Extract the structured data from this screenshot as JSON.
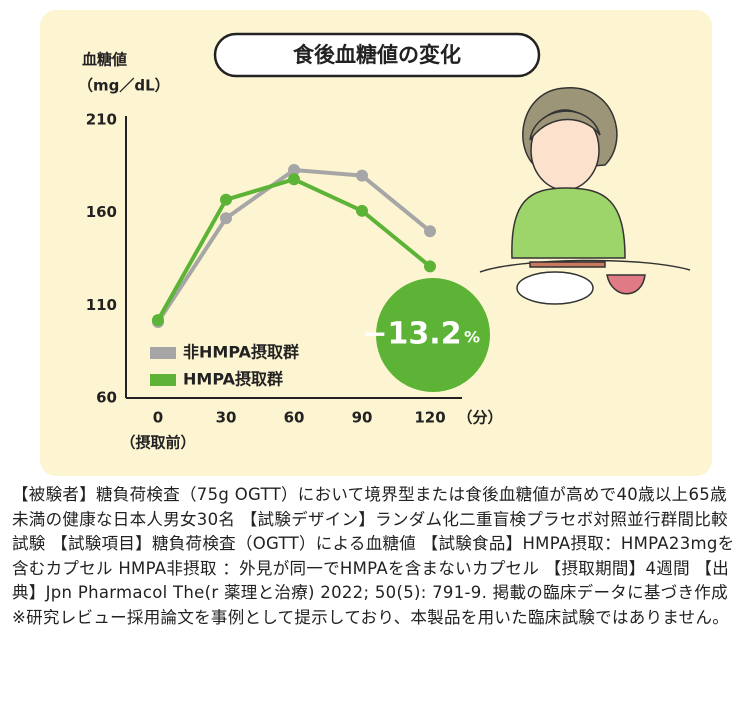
{
  "chart_data": {
    "type": "line",
    "title": "食後血糖値の変化",
    "ylabel_lines": [
      "血糖値",
      "（mg／dL）"
    ],
    "categories": [
      "0",
      "30",
      "60",
      "90",
      "120"
    ],
    "x_sublabel": "（摂取前）",
    "x_unit": "（分）",
    "series": [
      {
        "name": "非HMPA摂取群",
        "color": "#a6a6a6",
        "values": [
          101,
          157,
          183,
          180,
          150
        ]
      },
      {
        "name": "HMPA摂取群",
        "color": "#5cb335",
        "values": [
          102,
          167,
          178,
          161,
          131
        ]
      }
    ],
    "ylim": [
      60,
      210
    ],
    "yticks": [
      60,
      110,
      160,
      210
    ],
    "annotation_number": "−13.2",
    "annotation_unit": "%"
  },
  "caption": "【被験者】糖負荷検査（75g OGTT）において境界型または食後血糖値が高めで40歳以上65歳未満の健康な日本人男女30名 【試験デザイン】ランダム化二重盲検プラセボ対照並行群間比較試験 【試験項目】糖負荷検査（OGTT）による血糖値 【試験食品】HMPA摂取：HMPA23mgを含むカプセル HMPA非摂取 ：外見が同一でHMPAを含まないカプセル 【摂取期間】4週間 【出典】Jpn Pharmacol The(r 薬理と治療) 2022; 50(5): 791-9. 掲載の臨床データに基づき作成 ※研究レビュー採用論文を事例として提示しており、本製品を用いた臨床試験ではありません。"
}
